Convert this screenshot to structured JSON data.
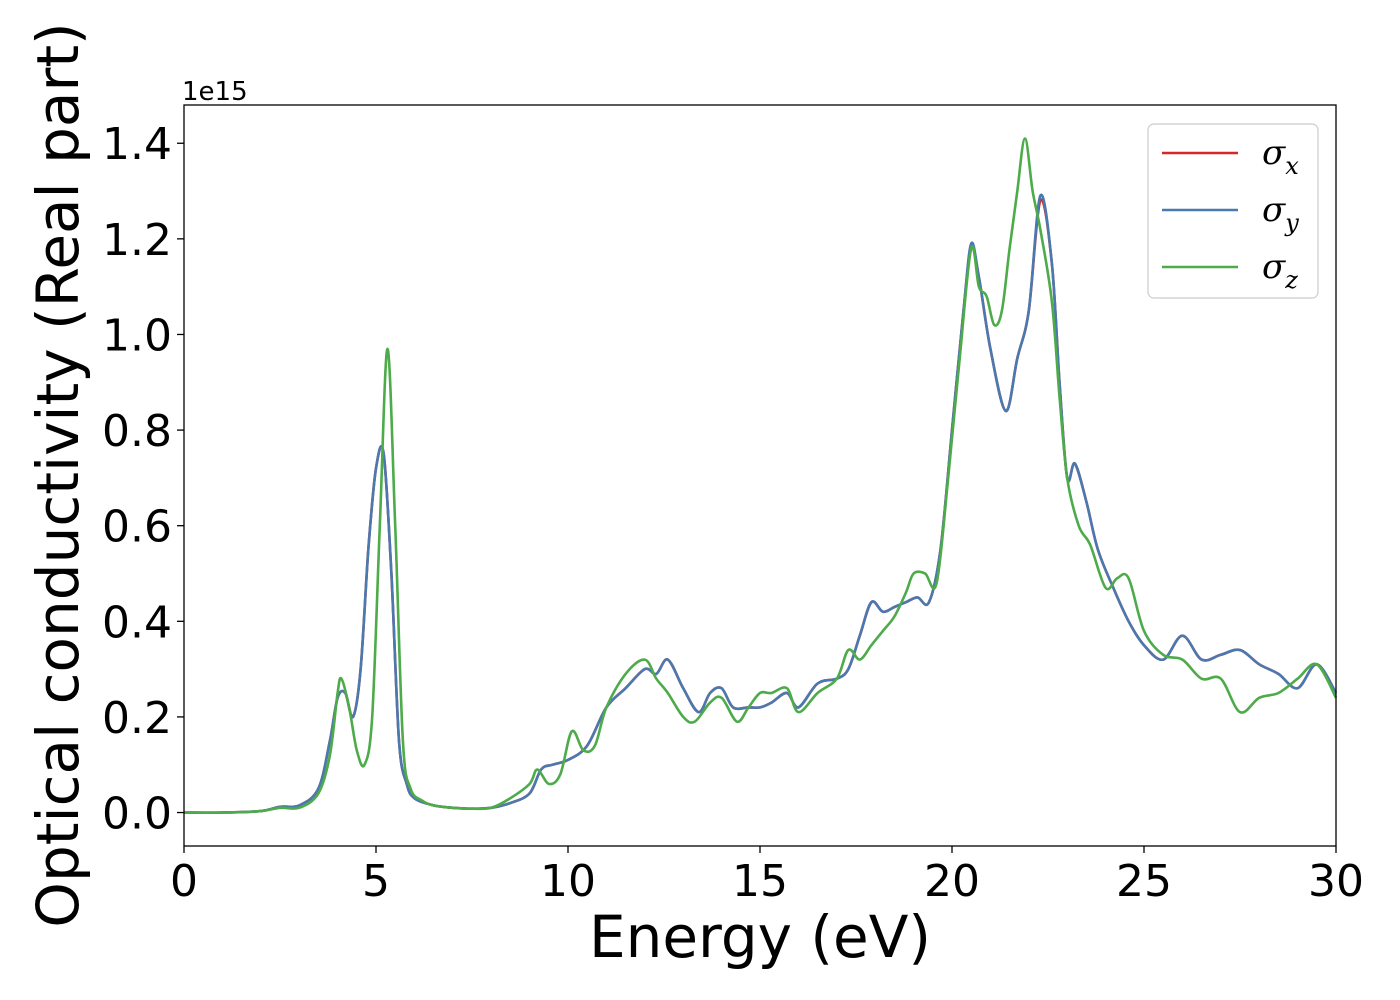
{
  "chart_data": {
    "type": "line",
    "title": "",
    "xlabel": "Energy (eV)",
    "ylabel": "Optical conductivity (Real part)",
    "y_offset_text": "1e15",
    "xlim": [
      0,
      30
    ],
    "ylim": [
      -0.07,
      1.48
    ],
    "xticks": [
      0,
      5,
      10,
      15,
      20,
      25,
      30
    ],
    "xtick_labels": [
      "0",
      "5",
      "10",
      "15",
      "20",
      "25",
      "30"
    ],
    "yticks": [
      0.0,
      0.2,
      0.4,
      0.6,
      0.8,
      1.0,
      1.2,
      1.4
    ],
    "ytick_labels": [
      "0.0",
      "0.2",
      "0.4",
      "0.6",
      "0.8",
      "1.0",
      "1.2",
      "1.4"
    ],
    "grid": false,
    "legend_position": "top-right",
    "series": [
      {
        "name": "σ_x",
        "legend_base": "σ",
        "legend_sub": "x",
        "color": "#d62728",
        "x": [
          0,
          1,
          2,
          2.5,
          3,
          3.5,
          3.8,
          4.0,
          4.2,
          4.4,
          4.6,
          4.8,
          5.0,
          5.2,
          5.4,
          5.6,
          5.8,
          6.0,
          6.5,
          7,
          7.5,
          8,
          8.5,
          9,
          9.3,
          9.6,
          10,
          10.5,
          11,
          11.5,
          12,
          12.3,
          12.6,
          13,
          13.4,
          13.7,
          14,
          14.3,
          14.7,
          15,
          15.3,
          15.7,
          16,
          16.5,
          17,
          17.3,
          17.6,
          17.9,
          18.2,
          18.5,
          18.8,
          19.1,
          19.4,
          19.7,
          20.0,
          20.3,
          20.5,
          20.7,
          21.0,
          21.4,
          21.7,
          22.0,
          22.3,
          22.6,
          22.8,
          23.0,
          23.2,
          23.5,
          23.8,
          24.2,
          24.6,
          25.0,
          25.5,
          26.0,
          26.5,
          27.0,
          27.5,
          28.0,
          28.5,
          29.0,
          29.5,
          30
        ],
        "y": [
          0,
          0,
          0.003,
          0.012,
          0.015,
          0.05,
          0.15,
          0.24,
          0.25,
          0.2,
          0.3,
          0.55,
          0.72,
          0.75,
          0.5,
          0.15,
          0.06,
          0.03,
          0.015,
          0.01,
          0.008,
          0.01,
          0.02,
          0.04,
          0.09,
          0.1,
          0.11,
          0.14,
          0.22,
          0.26,
          0.3,
          0.29,
          0.32,
          0.26,
          0.21,
          0.25,
          0.26,
          0.22,
          0.22,
          0.22,
          0.23,
          0.25,
          0.22,
          0.27,
          0.28,
          0.3,
          0.37,
          0.44,
          0.42,
          0.43,
          0.44,
          0.45,
          0.44,
          0.55,
          0.8,
          1.05,
          1.18,
          1.12,
          0.97,
          0.84,
          0.95,
          1.05,
          1.28,
          1.15,
          0.9,
          0.7,
          0.73,
          0.65,
          0.55,
          0.47,
          0.4,
          0.35,
          0.32,
          0.37,
          0.32,
          0.33,
          0.34,
          0.31,
          0.29,
          0.26,
          0.31,
          0.25
        ]
      },
      {
        "name": "σ_y",
        "legend_base": "σ",
        "legend_sub": "y",
        "color": "#4a79b0",
        "x": [
          0,
          1,
          2,
          2.5,
          3,
          3.5,
          3.8,
          4.0,
          4.2,
          4.4,
          4.6,
          4.8,
          5.0,
          5.2,
          5.4,
          5.6,
          5.8,
          6.0,
          6.5,
          7,
          7.5,
          8,
          8.5,
          9,
          9.3,
          9.6,
          10,
          10.5,
          11,
          11.5,
          12,
          12.3,
          12.6,
          13,
          13.4,
          13.7,
          14,
          14.3,
          14.7,
          15,
          15.3,
          15.7,
          16,
          16.5,
          17,
          17.3,
          17.6,
          17.9,
          18.2,
          18.5,
          18.8,
          19.1,
          19.4,
          19.7,
          20.0,
          20.3,
          20.5,
          20.7,
          21.0,
          21.4,
          21.7,
          22.0,
          22.3,
          22.6,
          22.8,
          23.0,
          23.2,
          23.5,
          23.8,
          24.2,
          24.6,
          25.0,
          25.5,
          26.0,
          26.5,
          27.0,
          27.5,
          28.0,
          28.5,
          29.0,
          29.5,
          30
        ],
        "y": [
          0,
          0,
          0.003,
          0.012,
          0.015,
          0.05,
          0.15,
          0.24,
          0.25,
          0.2,
          0.3,
          0.55,
          0.72,
          0.75,
          0.5,
          0.15,
          0.06,
          0.03,
          0.015,
          0.01,
          0.008,
          0.01,
          0.02,
          0.04,
          0.09,
          0.1,
          0.11,
          0.14,
          0.22,
          0.26,
          0.3,
          0.29,
          0.32,
          0.26,
          0.21,
          0.25,
          0.26,
          0.22,
          0.22,
          0.22,
          0.23,
          0.25,
          0.22,
          0.27,
          0.28,
          0.3,
          0.37,
          0.44,
          0.42,
          0.43,
          0.44,
          0.45,
          0.44,
          0.55,
          0.8,
          1.05,
          1.19,
          1.12,
          0.97,
          0.84,
          0.95,
          1.05,
          1.29,
          1.15,
          0.9,
          0.7,
          0.73,
          0.65,
          0.55,
          0.47,
          0.4,
          0.35,
          0.32,
          0.37,
          0.32,
          0.33,
          0.34,
          0.31,
          0.29,
          0.26,
          0.31,
          0.25
        ]
      },
      {
        "name": "σ_z",
        "legend_base": "σ",
        "legend_sub": "z",
        "color": "#4dab4a",
        "x": [
          0,
          1,
          2,
          2.5,
          3,
          3.5,
          3.8,
          4.0,
          4.1,
          4.3,
          4.5,
          4.7,
          4.9,
          5.1,
          5.3,
          5.5,
          5.7,
          5.9,
          6.2,
          6.5,
          7,
          7.5,
          8,
          8.5,
          9.0,
          9.2,
          9.5,
          9.8,
          10.1,
          10.4,
          10.7,
          11,
          11.5,
          12,
          12.3,
          12.6,
          13,
          13.3,
          13.7,
          14,
          14.4,
          14.7,
          15,
          15.3,
          15.7,
          16,
          16.5,
          17,
          17.3,
          17.6,
          17.9,
          18.2,
          18.5,
          18.8,
          19.0,
          19.3,
          19.6,
          19.9,
          20.2,
          20.5,
          20.7,
          20.9,
          21.1,
          21.3,
          21.5,
          21.7,
          21.9,
          22.1,
          22.3,
          22.6,
          22.8,
          23.0,
          23.3,
          23.6,
          24.0,
          24.3,
          24.6,
          25.0,
          25.5,
          26.0,
          26.5,
          27.0,
          27.5,
          28.0,
          28.5,
          29.0,
          29.5,
          30
        ],
        "y": [
          0,
          0,
          0.003,
          0.01,
          0.01,
          0.04,
          0.12,
          0.25,
          0.28,
          0.22,
          0.13,
          0.1,
          0.2,
          0.6,
          0.97,
          0.6,
          0.15,
          0.05,
          0.025,
          0.015,
          0.01,
          0.008,
          0.01,
          0.03,
          0.06,
          0.09,
          0.06,
          0.08,
          0.17,
          0.13,
          0.14,
          0.22,
          0.29,
          0.32,
          0.28,
          0.25,
          0.2,
          0.19,
          0.23,
          0.24,
          0.19,
          0.22,
          0.25,
          0.25,
          0.26,
          0.21,
          0.25,
          0.28,
          0.34,
          0.32,
          0.35,
          0.38,
          0.41,
          0.46,
          0.5,
          0.5,
          0.48,
          0.7,
          0.95,
          1.18,
          1.1,
          1.08,
          1.02,
          1.05,
          1.18,
          1.3,
          1.41,
          1.3,
          1.22,
          1.07,
          0.87,
          0.7,
          0.6,
          0.56,
          0.47,
          0.49,
          0.49,
          0.38,
          0.33,
          0.32,
          0.28,
          0.28,
          0.21,
          0.24,
          0.25,
          0.28,
          0.31,
          0.24
        ]
      }
    ]
  }
}
